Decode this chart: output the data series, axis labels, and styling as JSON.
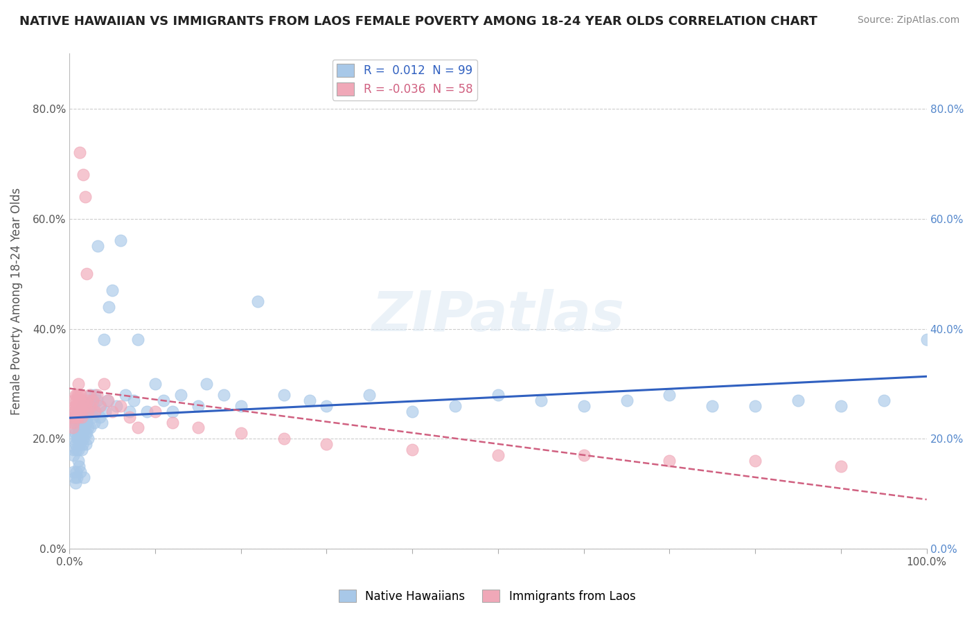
{
  "title": "NATIVE HAWAIIAN VS IMMIGRANTS FROM LAOS FEMALE POVERTY AMONG 18-24 YEAR OLDS CORRELATION CHART",
  "source": "Source: ZipAtlas.com",
  "ylabel": "Female Poverty Among 18-24 Year Olds",
  "xlim": [
    0,
    1.0
  ],
  "ylim": [
    0,
    0.9
  ],
  "ytick_positions": [
    0.0,
    0.2,
    0.4,
    0.6,
    0.8
  ],
  "ytick_labels": [
    "0.0%",
    "20.0%",
    "40.0%",
    "60.0%",
    "80.0%"
  ],
  "xtick_positions": [
    0.0,
    0.1,
    0.2,
    0.3,
    0.4,
    0.5,
    0.6,
    0.7,
    0.8,
    0.9,
    1.0
  ],
  "xtick_labels": [
    "0.0%",
    "",
    "",
    "",
    "",
    "",
    "",
    "",
    "",
    "",
    "100.0%"
  ],
  "right_ytick_labels": [
    "0.0%",
    "20.0%",
    "40.0%",
    "60.0%",
    "80.0%"
  ],
  "legend1_label": "R =  0.012  N = 99",
  "legend2_label": "R = -0.036  N = 58",
  "blue_color": "#a8c8e8",
  "pink_color": "#f0a8b8",
  "blue_line_color": "#3060c0",
  "pink_line_color": "#d06080",
  "background_color": "#ffffff",
  "title_fontsize": 13,
  "native_hawaiian_x": [
    0.005,
    0.005,
    0.005,
    0.005,
    0.005,
    0.007,
    0.007,
    0.008,
    0.008,
    0.009,
    0.01,
    0.01,
    0.01,
    0.01,
    0.01,
    0.01,
    0.01,
    0.012,
    0.012,
    0.013,
    0.013,
    0.014,
    0.015,
    0.015,
    0.015,
    0.015,
    0.016,
    0.016,
    0.017,
    0.018,
    0.018,
    0.019,
    0.02,
    0.02,
    0.02,
    0.021,
    0.022,
    0.022,
    0.023,
    0.024,
    0.025,
    0.025,
    0.026,
    0.027,
    0.028,
    0.029,
    0.03,
    0.03,
    0.032,
    0.033,
    0.035,
    0.036,
    0.038,
    0.04,
    0.042,
    0.044,
    0.046,
    0.05,
    0.055,
    0.06,
    0.065,
    0.07,
    0.075,
    0.08,
    0.09,
    0.1,
    0.11,
    0.12,
    0.13,
    0.15,
    0.16,
    0.18,
    0.2,
    0.22,
    0.25,
    0.28,
    0.3,
    0.35,
    0.4,
    0.45,
    0.5,
    0.55,
    0.6,
    0.65,
    0.7,
    0.75,
    0.8,
    0.85,
    0.9,
    0.95,
    1.0,
    0.005,
    0.006,
    0.007,
    0.008,
    0.009,
    0.011,
    0.013,
    0.017
  ],
  "native_hawaiian_y": [
    0.24,
    0.22,
    0.2,
    0.18,
    0.17,
    0.21,
    0.19,
    0.23,
    0.18,
    0.2,
    0.25,
    0.22,
    0.2,
    0.18,
    0.16,
    0.24,
    0.21,
    0.19,
    0.23,
    0.2,
    0.22,
    0.18,
    0.26,
    0.24,
    0.21,
    0.19,
    0.23,
    0.2,
    0.22,
    0.24,
    0.21,
    0.19,
    0.26,
    0.23,
    0.21,
    0.24,
    0.22,
    0.2,
    0.25,
    0.22,
    0.28,
    0.25,
    0.27,
    0.24,
    0.26,
    0.23,
    0.28,
    0.25,
    0.27,
    0.55,
    0.24,
    0.26,
    0.23,
    0.38,
    0.25,
    0.27,
    0.44,
    0.47,
    0.26,
    0.56,
    0.28,
    0.25,
    0.27,
    0.38,
    0.25,
    0.3,
    0.27,
    0.25,
    0.28,
    0.26,
    0.3,
    0.28,
    0.26,
    0.45,
    0.28,
    0.27,
    0.26,
    0.28,
    0.25,
    0.26,
    0.28,
    0.27,
    0.26,
    0.27,
    0.28,
    0.26,
    0.26,
    0.27,
    0.26,
    0.27,
    0.38,
    0.14,
    0.13,
    0.12,
    0.14,
    0.13,
    0.15,
    0.14,
    0.13
  ],
  "immigrants_laos_x": [
    0.003,
    0.004,
    0.005,
    0.005,
    0.005,
    0.006,
    0.006,
    0.007,
    0.007,
    0.008,
    0.008,
    0.008,
    0.009,
    0.009,
    0.01,
    0.01,
    0.01,
    0.01,
    0.011,
    0.011,
    0.012,
    0.012,
    0.013,
    0.013,
    0.014,
    0.015,
    0.015,
    0.016,
    0.017,
    0.018,
    0.019,
    0.02,
    0.021,
    0.022,
    0.023,
    0.025,
    0.027,
    0.03,
    0.032,
    0.035,
    0.04,
    0.045,
    0.05,
    0.06,
    0.07,
    0.08,
    0.1,
    0.12,
    0.15,
    0.2,
    0.25,
    0.3,
    0.4,
    0.5,
    0.6,
    0.7,
    0.8,
    0.9
  ],
  "immigrants_laos_y": [
    0.24,
    0.22,
    0.27,
    0.25,
    0.23,
    0.26,
    0.24,
    0.28,
    0.25,
    0.27,
    0.26,
    0.24,
    0.28,
    0.26,
    0.3,
    0.28,
    0.26,
    0.24,
    0.27,
    0.25,
    0.72,
    0.26,
    0.28,
    0.26,
    0.24,
    0.27,
    0.25,
    0.68,
    0.26,
    0.64,
    0.26,
    0.5,
    0.27,
    0.25,
    0.28,
    0.26,
    0.27,
    0.25,
    0.28,
    0.26,
    0.3,
    0.27,
    0.25,
    0.26,
    0.24,
    0.22,
    0.25,
    0.23,
    0.22,
    0.21,
    0.2,
    0.19,
    0.18,
    0.17,
    0.17,
    0.16,
    0.16,
    0.15
  ]
}
